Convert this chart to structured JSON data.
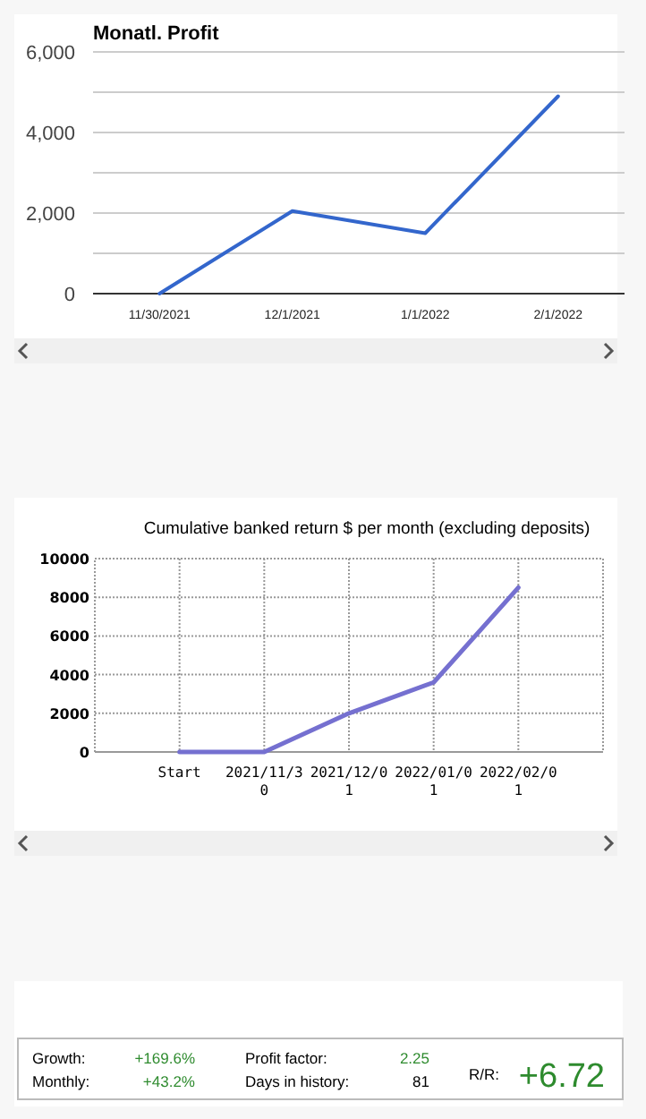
{
  "chart_data": [
    {
      "type": "line",
      "title": "Monatl. Profit",
      "categories": [
        "11/30/2021",
        "12/1/2021",
        "1/1/2022",
        "2/1/2022"
      ],
      "series": [
        {
          "color": "#3366cc",
          "values": [
            0,
            2050,
            1500,
            4900
          ]
        }
      ],
      "ylim": [
        0,
        6000
      ],
      "yticks": [
        {
          "value": 0,
          "label": "0"
        },
        {
          "value": 1000,
          "label": null
        },
        {
          "value": 2000,
          "label": "2,000"
        },
        {
          "value": 3000,
          "label": null
        },
        {
          "value": 4000,
          "label": "4,000"
        },
        {
          "value": 5000,
          "label": null
        },
        {
          "value": 6000,
          "label": "6,000"
        }
      ],
      "grid": "y",
      "marker": "none"
    },
    {
      "type": "line",
      "title": "Cumulative banked return $ per month (excluding deposits)",
      "categories": [
        "Start",
        "2021/11/30",
        "2021/12/01",
        "2022/01/01",
        "2022/02/01"
      ],
      "series": [
        {
          "color": "#7570d0",
          "values": [
            0,
            0,
            2000,
            3600,
            8500
          ]
        }
      ],
      "ylim": [
        0,
        10000
      ],
      "yticks": [
        0,
        2000,
        4000,
        6000,
        8000,
        10000
      ],
      "grid": true,
      "marker": "none"
    },
    {
      "type": "other",
      "annotations": [
        "Growth:",
        "+169.6%",
        "Monthly:",
        "+43.2%",
        "Profit factor:",
        "2.25",
        "Days in history:",
        "81",
        "R/R:",
        "+6.72"
      ],
      "colors": [
        "#000000",
        "#2e8b2e",
        "#000000",
        "#2e8b2e",
        "#000000",
        "#2e8b2e",
        "#000000",
        "#000000",
        "#000000",
        "#2e8b2e"
      ]
    }
  ]
}
